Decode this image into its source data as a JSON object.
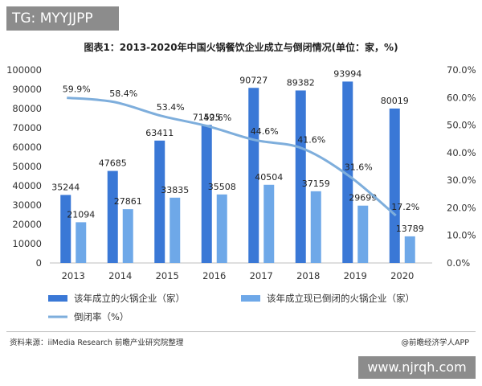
{
  "watermark_top": "TG: MYYJJPP",
  "watermark_bottom": "www.njrqh.com",
  "source": "资料来源：iiMedia Research 前瞻产业研究院整理",
  "brand": "@前瞻经济学人APP",
  "colors": {
    "established": "#3a78d6",
    "closed": "#6ea8e8",
    "rate": "#7eaedc"
  },
  "chart_data": {
    "type": "bar",
    "title": "图表1：2013-2020年中国火锅餐饮企业成立与倒闭情况(单位：家，%)",
    "categories": [
      "2013",
      "2014",
      "2015",
      "2016",
      "2017",
      "2018",
      "2019",
      "2020"
    ],
    "series": [
      {
        "name": "该年成立的火锅企业（家）",
        "type": "bar",
        "axis": "left",
        "values": [
          35244,
          47685,
          63411,
          71525,
          90727,
          89382,
          93994,
          80019
        ]
      },
      {
        "name": "该年成立现已倒闭的火锅企业（家）",
        "type": "bar",
        "axis": "left",
        "values": [
          21094,
          27861,
          33835,
          35508,
          40504,
          37159,
          29699,
          13789
        ]
      },
      {
        "name": "倒闭率（%）",
        "type": "line",
        "axis": "right",
        "values": [
          59.9,
          58.4,
          53.4,
          49.6,
          44.6,
          41.6,
          31.6,
          17.2
        ],
        "labels": [
          "59.9%",
          "58.4%",
          "53.4%",
          "49.6%",
          "44.6%",
          "41.6%",
          "31.6%",
          "17.2%"
        ]
      }
    ],
    "y_left": {
      "min": 0,
      "max": 100000,
      "step": 10000,
      "ticks": [
        "0",
        "10000",
        "20000",
        "30000",
        "40000",
        "50000",
        "60000",
        "70000",
        "80000",
        "90000",
        "100000"
      ]
    },
    "y_right": {
      "min": 0,
      "max": 70,
      "step": 10,
      "ticks": [
        "0.0%",
        "10.0%",
        "20.0%",
        "30.0%",
        "40.0%",
        "50.0%",
        "60.0%",
        "70.0%"
      ]
    },
    "grid": false,
    "legend_placement": "bottom"
  }
}
